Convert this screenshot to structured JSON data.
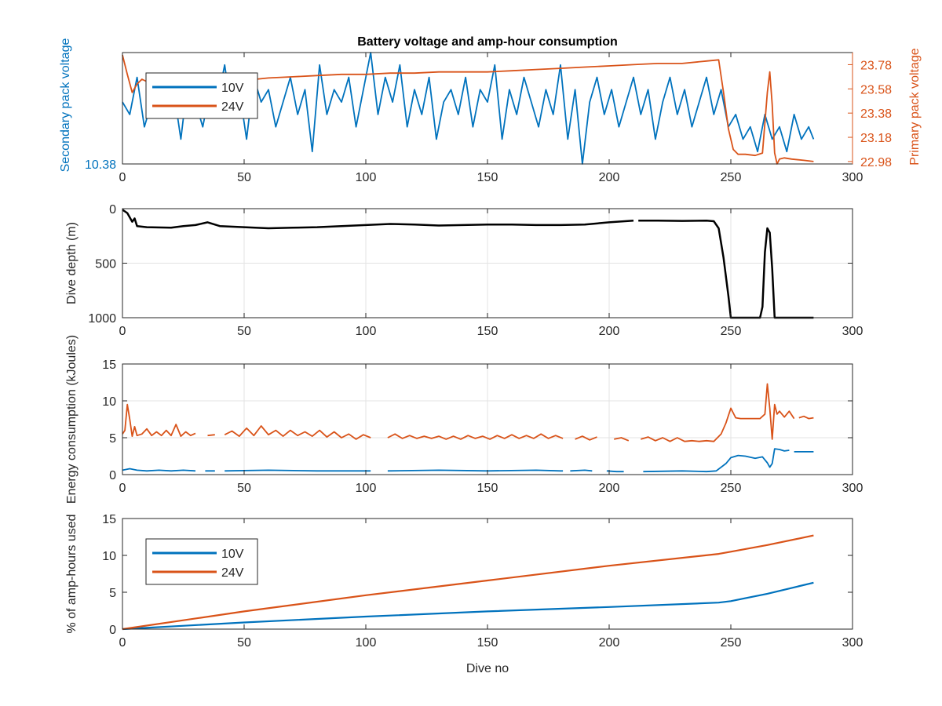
{
  "figure": {
    "title": "Battery voltage and amp-hour consumption",
    "colors": {
      "blue": "#0072bd",
      "orange": "#d95319",
      "black": "#000000",
      "grid": "#e3e3e3",
      "axis": "#262626"
    }
  },
  "chart_data": [
    {
      "type": "line",
      "title": "Battery voltage and amp-hour consumption",
      "xlabel": "",
      "xlim": [
        0,
        300
      ],
      "xticks": [
        "0",
        "50",
        "100",
        "150",
        "200",
        "250",
        "300"
      ],
      "y_left": {
        "label": "Secondary pack voltage",
        "color": "#0072bd",
        "ticks": [
          "10.38"
        ],
        "lim": [
          10.38,
          10.47
        ]
      },
      "y_right": {
        "label": "Primary pack voltage",
        "color": "#d95319",
        "ticks": [
          "22.98",
          "23.18",
          "23.38",
          "23.58",
          "23.78"
        ],
        "lim": [
          22.96,
          23.88
        ]
      },
      "grid": false,
      "legend": {
        "placement": "top-left",
        "entries": [
          "10V",
          "24V"
        ]
      },
      "series": [
        {
          "name": "10V",
          "axis": "left",
          "color": "#0072bd",
          "x": [
            0,
            3,
            6,
            9,
            12,
            15,
            18,
            21,
            24,
            27,
            30,
            33,
            36,
            39,
            42,
            45,
            48,
            51,
            54,
            57,
            60,
            63,
            66,
            69,
            72,
            75,
            78,
            81,
            84,
            87,
            90,
            93,
            96,
            99,
            102,
            105,
            108,
            111,
            114,
            117,
            120,
            123,
            126,
            129,
            132,
            135,
            138,
            141,
            144,
            147,
            150,
            153,
            156,
            159,
            162,
            165,
            168,
            171,
            174,
            177,
            180,
            183,
            186,
            189,
            192,
            195,
            198,
            201,
            204,
            207,
            210,
            213,
            216,
            219,
            222,
            225,
            228,
            231,
            234,
            237,
            240,
            243,
            246,
            249,
            252,
            255,
            258,
            261,
            264,
            267,
            270,
            273,
            276,
            279,
            282,
            284
          ],
          "y": [
            10.43,
            10.42,
            10.45,
            10.41,
            10.43,
            10.44,
            10.42,
            10.44,
            10.4,
            10.45,
            10.43,
            10.41,
            10.44,
            10.43,
            10.46,
            10.42,
            10.44,
            10.4,
            10.45,
            10.43,
            10.44,
            10.41,
            10.43,
            10.45,
            10.42,
            10.44,
            10.39,
            10.46,
            10.42,
            10.44,
            10.43,
            10.45,
            10.41,
            10.44,
            10.47,
            10.42,
            10.45,
            10.43,
            10.46,
            10.41,
            10.44,
            10.42,
            10.45,
            10.4,
            10.43,
            10.44,
            10.42,
            10.45,
            10.41,
            10.44,
            10.43,
            10.46,
            10.4,
            10.44,
            10.42,
            10.45,
            10.43,
            10.41,
            10.44,
            10.42,
            10.46,
            10.4,
            10.44,
            10.38,
            10.43,
            10.45,
            10.42,
            10.44,
            10.41,
            10.43,
            10.45,
            10.42,
            10.44,
            10.4,
            10.43,
            10.45,
            10.42,
            10.44,
            10.41,
            10.43,
            10.45,
            10.42,
            10.44,
            10.41,
            10.42,
            10.4,
            10.41,
            10.39,
            10.42,
            10.4,
            10.41,
            10.39,
            10.42,
            10.4,
            10.41,
            10.4
          ]
        },
        {
          "name": "24V",
          "axis": "right",
          "color": "#d95319",
          "x": [
            0,
            2,
            4,
            6,
            8,
            10,
            15,
            20,
            25,
            30,
            40,
            50,
            60,
            70,
            80,
            90,
            100,
            110,
            120,
            130,
            140,
            150,
            160,
            170,
            180,
            190,
            200,
            210,
            220,
            230,
            240,
            245,
            247,
            249,
            251,
            253,
            256,
            260,
            263,
            265,
            266,
            267,
            268,
            269,
            270,
            272,
            275,
            280,
            284
          ],
          "y": [
            23.86,
            23.7,
            23.55,
            23.62,
            23.66,
            23.64,
            23.62,
            23.62,
            23.63,
            23.63,
            23.64,
            23.65,
            23.67,
            23.68,
            23.69,
            23.7,
            23.7,
            23.71,
            23.71,
            23.72,
            23.72,
            23.72,
            23.73,
            23.74,
            23.75,
            23.76,
            23.77,
            23.78,
            23.79,
            23.79,
            23.81,
            23.82,
            23.55,
            23.25,
            23.08,
            23.04,
            23.04,
            23.03,
            23.05,
            23.55,
            23.72,
            23.45,
            23.05,
            22.96,
            23.0,
            23.01,
            23.0,
            22.99,
            22.98
          ]
        }
      ]
    },
    {
      "type": "line",
      "xlabel": "",
      "ylabel": "Dive depth (m)",
      "xlim": [
        0,
        300
      ],
      "ylim": [
        0,
        1000
      ],
      "y_reversed": true,
      "xticks": [
        "0",
        "50",
        "100",
        "150",
        "200",
        "250",
        "300"
      ],
      "yticks": [
        "0",
        "500",
        "1000"
      ],
      "grid": true,
      "series": [
        {
          "color": "#000000",
          "x": [
            0,
            2,
            3,
            4,
            5,
            6,
            10,
            20,
            25,
            30,
            35,
            40,
            50,
            60,
            70,
            80,
            90,
            100,
            110,
            120,
            130,
            140,
            150,
            160,
            170,
            180,
            190,
            200,
            210,
            null,
            212,
            220,
            230,
            240,
            243,
            245,
            247,
            249,
            250,
            262,
            263,
            264,
            265,
            266,
            267,
            268,
            270,
            284
          ],
          "y": [
            10,
            40,
            80,
            120,
            90,
            160,
            170,
            175,
            160,
            150,
            125,
            160,
            170,
            180,
            175,
            170,
            160,
            150,
            140,
            145,
            155,
            150,
            145,
            145,
            150,
            150,
            145,
            125,
            110,
            null,
            110,
            110,
            112,
            110,
            115,
            180,
            450,
            800,
            1000,
            1000,
            900,
            400,
            180,
            220,
            550,
            1000,
            1000,
            1000
          ]
        }
      ]
    },
    {
      "type": "line",
      "xlabel": "",
      "ylabel": "Energy consumption (kJoules)",
      "xlim": [
        0,
        300
      ],
      "ylim": [
        0,
        15
      ],
      "xticks": [
        "0",
        "50",
        "100",
        "150",
        "200",
        "250",
        "300"
      ],
      "yticks": [
        "0",
        "5",
        "10",
        "15"
      ],
      "grid": true,
      "series": [
        {
          "name": "24V",
          "color": "#d95319",
          "x": [
            0,
            1,
            2,
            3,
            4,
            5,
            6,
            8,
            10,
            12,
            14,
            16,
            18,
            20,
            22,
            24,
            26,
            28,
            30,
            null,
            35,
            38,
            null,
            42,
            45,
            48,
            51,
            54,
            57,
            60,
            63,
            66,
            69,
            72,
            75,
            78,
            81,
            84,
            87,
            90,
            93,
            96,
            99,
            102,
            null,
            109,
            112,
            115,
            118,
            121,
            124,
            127,
            130,
            133,
            136,
            139,
            142,
            145,
            148,
            151,
            154,
            157,
            160,
            163,
            166,
            169,
            172,
            175,
            178,
            181,
            null,
            186,
            189,
            192,
            195,
            null,
            202,
            205,
            208,
            null,
            213,
            216,
            219,
            222,
            225,
            228,
            231,
            234,
            237,
            240,
            243,
            246,
            248,
            250,
            252,
            254,
            256,
            258,
            260,
            262,
            264,
            265,
            266,
            267,
            268,
            269,
            270,
            272,
            274,
            276,
            null,
            278,
            280,
            282,
            284
          ],
          "y": [
            5.5,
            6,
            9.5,
            7.5,
            5.2,
            6.5,
            5.3,
            5.5,
            6.2,
            5.3,
            5.8,
            5.3,
            6.0,
            5.3,
            6.8,
            5.2,
            5.8,
            5.3,
            5.6,
            null,
            5.3,
            5.4,
            null,
            5.4,
            5.9,
            5.2,
            6.3,
            5.3,
            6.6,
            5.4,
            6.0,
            5.2,
            6.0,
            5.3,
            5.8,
            5.2,
            6.0,
            5.1,
            5.8,
            5.0,
            5.5,
            4.8,
            5.4,
            5.0,
            null,
            5.0,
            5.5,
            4.9,
            5.3,
            4.9,
            5.2,
            4.9,
            5.2,
            4.8,
            5.2,
            4.8,
            5.3,
            4.9,
            5.2,
            4.8,
            5.3,
            4.9,
            5.4,
            4.9,
            5.3,
            4.9,
            5.5,
            4.9,
            5.3,
            4.9,
            null,
            4.8,
            5.2,
            4.7,
            5.1,
            null,
            4.8,
            5.0,
            4.6,
            null,
            4.8,
            5.1,
            4.6,
            5.0,
            4.5,
            5.0,
            4.5,
            4.6,
            4.5,
            4.6,
            4.5,
            5.5,
            7,
            9,
            7.7,
            7.6,
            7.6,
            7.6,
            7.6,
            7.6,
            8.2,
            12.3,
            9,
            4.8,
            9.5,
            8.2,
            8.6,
            7.8,
            8.6,
            7.6,
            null,
            7.7,
            7.9,
            7.6,
            7.7
          ]
        },
        {
          "name": "10V",
          "color": "#0072bd",
          "x": [
            0,
            3,
            6,
            10,
            15,
            20,
            25,
            30,
            null,
            34,
            38,
            null,
            42,
            60,
            80,
            100,
            102,
            null,
            109,
            130,
            150,
            170,
            180,
            181,
            null,
            184,
            190,
            193,
            null,
            199,
            203,
            206,
            null,
            214,
            230,
            240,
            244,
            248,
            250,
            253,
            256,
            260,
            263,
            265,
            266,
            267,
            268,
            270,
            272,
            274,
            null,
            276,
            284
          ],
          "y": [
            0.6,
            0.8,
            0.6,
            0.5,
            0.6,
            0.5,
            0.6,
            0.5,
            null,
            0.5,
            0.5,
            null,
            0.5,
            0.6,
            0.5,
            0.5,
            0.5,
            null,
            0.5,
            0.6,
            0.5,
            0.6,
            0.5,
            0.5,
            null,
            0.5,
            0.6,
            0.5,
            null,
            0.5,
            0.4,
            0.4,
            null,
            0.4,
            0.5,
            0.4,
            0.5,
            1.5,
            2.3,
            2.6,
            2.5,
            2.2,
            2.4,
            1.6,
            1.0,
            1.5,
            3.5,
            3.4,
            3.2,
            3.3,
            null,
            3.1,
            3.1
          ]
        }
      ]
    },
    {
      "type": "line",
      "xlabel": "Dive no",
      "ylabel": "% of amp-hours used",
      "xlim": [
        0,
        300
      ],
      "ylim": [
        0,
        15
      ],
      "xticks": [
        "0",
        "50",
        "100",
        "150",
        "200",
        "250",
        "300"
      ],
      "yticks": [
        "0",
        "5",
        "10",
        "15"
      ],
      "grid": false,
      "legend": {
        "placement": "top-left",
        "entries": [
          "10V",
          "24V"
        ]
      },
      "series": [
        {
          "name": "10V",
          "color": "#0072bd",
          "x": [
            0,
            50,
            100,
            150,
            200,
            245,
            250,
            265,
            284
          ],
          "y": [
            0,
            0.9,
            1.7,
            2.4,
            3.0,
            3.6,
            3.8,
            4.8,
            6.3
          ]
        },
        {
          "name": "24V",
          "color": "#d95319",
          "x": [
            0,
            50,
            100,
            150,
            200,
            245,
            250,
            265,
            284
          ],
          "y": [
            0,
            2.4,
            4.6,
            6.6,
            8.6,
            10.2,
            10.5,
            11.4,
            12.7
          ]
        }
      ]
    }
  ]
}
